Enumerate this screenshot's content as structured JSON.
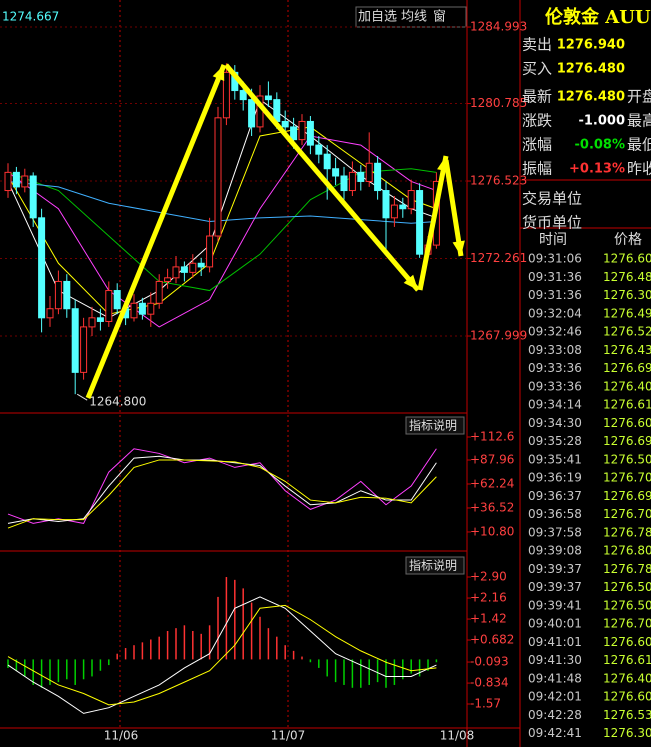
{
  "toolbar": [
    "加自选",
    "均线",
    "窗"
  ],
  "dates": [
    "11/06",
    "11/07",
    "11/08"
  ],
  "chart_data": [
    {
      "type": "candlestick",
      "current": "1274.667",
      "ylim": [
        1263.82,
        1286.48
      ],
      "yticks": [
        1284.993,
        1280.785,
        1276.523,
        1272.261,
        1267.999
      ],
      "grid": true,
      "up_color": "#ff3232",
      "down_color": "#54ffff",
      "candles": [
        [
          1276.0,
          1277.5,
          1275.6,
          1277.0
        ],
        [
          1277.0,
          1277.3,
          1275.8,
          1276.2
        ],
        [
          1276.2,
          1277.2,
          1275.9,
          1276.8
        ],
        [
          1276.8,
          1277.0,
          1274.0,
          1274.5
        ],
        [
          1274.5,
          1275.0,
          1268.2,
          1269.0
        ],
        [
          1269.0,
          1270.2,
          1268.5,
          1269.5
        ],
        [
          1269.5,
          1271.6,
          1269.2,
          1271.0
        ],
        [
          1271.0,
          1271.4,
          1269.0,
          1269.5
        ],
        [
          1269.5,
          1270.0,
          1264.8,
          1266.0
        ],
        [
          1266.0,
          1269.0,
          1265.6,
          1268.5
        ],
        [
          1268.5,
          1269.6,
          1268.0,
          1269.0
        ],
        [
          1269.0,
          1269.5,
          1268.3,
          1268.8
        ],
        [
          1268.8,
          1271.0,
          1268.5,
          1270.5
        ],
        [
          1270.5,
          1270.9,
          1269.2,
          1269.5
        ],
        [
          1269.5,
          1269.9,
          1268.6,
          1269.0
        ],
        [
          1269.0,
          1270.3,
          1268.8,
          1269.8
        ],
        [
          1269.8,
          1270.1,
          1268.9,
          1269.2
        ],
        [
          1269.2,
          1270.4,
          1268.5,
          1269.8
        ],
        [
          1269.8,
          1271.4,
          1269.5,
          1271.0
        ],
        [
          1271.0,
          1271.7,
          1270.6,
          1271.2
        ],
        [
          1271.2,
          1272.4,
          1270.9,
          1271.8
        ],
        [
          1271.8,
          1272.1,
          1271.0,
          1271.5
        ],
        [
          1271.5,
          1272.5,
          1271.2,
          1272.0
        ],
        [
          1272.0,
          1272.3,
          1271.3,
          1271.8
        ],
        [
          1271.8,
          1274.5,
          1271.5,
          1273.5
        ],
        [
          1273.5,
          1280.6,
          1273.2,
          1280.0
        ],
        [
          1280.0,
          1283.0,
          1279.6,
          1282.5
        ],
        [
          1282.5,
          1282.9,
          1281.0,
          1281.5
        ],
        [
          1281.5,
          1282.0,
          1280.4,
          1281.0
        ],
        [
          1281.0,
          1281.6,
          1279.0,
          1279.5
        ],
        [
          1279.5,
          1281.8,
          1279.2,
          1281.2
        ],
        [
          1281.2,
          1282.0,
          1280.6,
          1281.0
        ],
        [
          1281.0,
          1281.4,
          1279.4,
          1279.8
        ],
        [
          1279.8,
          1280.4,
          1279.0,
          1279.5
        ],
        [
          1279.5,
          1280.0,
          1278.3,
          1278.8
        ],
        [
          1278.8,
          1280.2,
          1278.5,
          1279.8
        ],
        [
          1279.8,
          1280.1,
          1278.0,
          1278.5
        ],
        [
          1278.5,
          1279.0,
          1277.5,
          1278.0
        ],
        [
          1278.0,
          1278.5,
          1275.5,
          1277.2
        ],
        [
          1277.2,
          1277.8,
          1276.3,
          1276.8
        ],
        [
          1276.8,
          1277.3,
          1275.5,
          1276.0
        ],
        [
          1276.0,
          1277.6,
          1275.7,
          1277.0
        ],
        [
          1277.0,
          1277.4,
          1276.0,
          1276.5
        ],
        [
          1276.5,
          1279.2,
          1276.2,
          1277.5
        ],
        [
          1277.5,
          1277.9,
          1275.5,
          1276.0
        ],
        [
          1276.0,
          1276.5,
          1272.5,
          1274.5
        ],
        [
          1274.5,
          1275.7,
          1274.0,
          1275.2
        ],
        [
          1275.2,
          1275.6,
          1274.5,
          1275.0
        ],
        [
          1275.0,
          1276.6,
          1274.7,
          1276.0
        ],
        [
          1276.0,
          1276.4,
          1272.3,
          1272.5
        ],
        [
          1272.5,
          1273.5,
          1272.2,
          1273.0
        ],
        [
          1273.0,
          1277.0,
          1272.8,
          1276.5
        ]
      ],
      "lines": [
        {
          "color": "#ffffff",
          "x": [
            0,
            6,
            12,
            18,
            24,
            30,
            36,
            42,
            48,
            51
          ],
          "values": [
            1276.5,
            1270.5,
            1269,
            1270.5,
            1273,
            1281,
            1279,
            1276.8,
            1275,
            1274.5
          ]
        },
        {
          "color": "#ffff00",
          "x": [
            0,
            6,
            12,
            18,
            24,
            30,
            36,
            42,
            48,
            51
          ],
          "values": [
            1276.8,
            1272,
            1269.2,
            1269.8,
            1272,
            1279,
            1279.5,
            1277.5,
            1275.5,
            1275
          ]
        },
        {
          "color": "#ff40ff",
          "x": [
            0,
            6,
            12,
            18,
            24,
            30,
            36,
            42,
            48,
            51
          ],
          "values": [
            1277,
            1275,
            1270.5,
            1268.5,
            1270,
            1275,
            1279,
            1278.5,
            1276.5,
            1276
          ]
        },
        {
          "color": "#00c000",
          "x": [
            0,
            6,
            12,
            18,
            24,
            30,
            36,
            42,
            48,
            51
          ],
          "values": [
            1277,
            1276,
            1273.5,
            1271,
            1270.5,
            1272.5,
            1275.5,
            1277,
            1277.2,
            1277
          ]
        },
        {
          "color": "#40b0ff",
          "x": [
            0,
            6,
            12,
            18,
            24,
            30,
            36,
            42,
            48,
            51
          ],
          "values": [
            1276.5,
            1276.2,
            1275.3,
            1274.8,
            1274.3,
            1274.5,
            1274.6,
            1274.4,
            1274.2,
            1274.3
          ]
        }
      ],
      "annotation": {
        "value": 1264.8,
        "label": "1264.800"
      }
    },
    {
      "type": "line",
      "title": "指标说明",
      "ylim": [
        -6.4,
        136.2
      ],
      "yticks": [
        {
          "value": 112.6,
          "label": "+112.6"
        },
        {
          "value": 87.96,
          "label": "+87.96"
        },
        {
          "value": 62.24,
          "label": "+62.24"
        },
        {
          "value": 36.52,
          "label": "+36.52"
        },
        {
          "value": 10.8,
          "label": "+10.80"
        }
      ],
      "lines": [
        {
          "color": "#ff40ff",
          "x": [
            0,
            3,
            6,
            9,
            12,
            15,
            18,
            21,
            24,
            27,
            30,
            33,
            36,
            39,
            42,
            45,
            48,
            51
          ],
          "values": [
            30,
            20,
            25,
            20,
            75,
            100,
            95,
            85,
            90,
            80,
            85,
            55,
            35,
            45,
            65,
            40,
            60,
            100
          ]
        },
        {
          "color": "#ffffff",
          "x": [
            0,
            3,
            6,
            9,
            12,
            15,
            18,
            21,
            24,
            27,
            30,
            33,
            36,
            39,
            42,
            45,
            48,
            51
          ],
          "values": [
            20,
            25,
            22,
            25,
            60,
            90,
            92,
            88,
            88,
            85,
            82,
            60,
            40,
            42,
            55,
            45,
            45,
            85
          ]
        },
        {
          "color": "#ffff00",
          "x": [
            0,
            3,
            6,
            9,
            12,
            15,
            18,
            21,
            24,
            27,
            30,
            33,
            36,
            39,
            42,
            45,
            48,
            51
          ],
          "values": [
            15,
            25,
            24,
            24,
            50,
            80,
            88,
            88,
            87,
            86,
            80,
            65,
            45,
            42,
            48,
            47,
            42,
            70
          ]
        }
      ]
    },
    {
      "type": "macd",
      "title": "指标说明",
      "ylim": [
        -2.415,
        3.675
      ],
      "yticks": [
        {
          "value": 2.9,
          "label": "+2.90"
        },
        {
          "value": 2.16,
          "label": "+2.16"
        },
        {
          "value": 1.42,
          "label": "+1.42"
        },
        {
          "value": 0.682,
          "label": "+0.682"
        },
        -0.093,
        -0.834,
        -1.57
      ],
      "up_color": "#ff3232",
      "down_color": "#00d000",
      "bars": [
        -0.3,
        -0.4,
        -0.6,
        -0.9,
        -1.0,
        -0.9,
        -0.8,
        -0.7,
        -0.9,
        -0.7,
        -0.6,
        -0.4,
        -0.2,
        0.2,
        0.4,
        0.5,
        0.6,
        0.7,
        0.8,
        1.0,
        1.1,
        1.2,
        1.0,
        0.9,
        1.2,
        2.2,
        2.9,
        2.8,
        2.5,
        2.0,
        1.5,
        1.1,
        0.8,
        0.5,
        0.3,
        0.1,
        -0.1,
        -0.3,
        -0.6,
        -0.8,
        -0.9,
        -1.0,
        -1.0,
        -0.9,
        -0.8,
        -1.0,
        -0.9,
        -0.7,
        -0.5,
        -0.6,
        -0.4,
        -0.1
      ],
      "lines": [
        {
          "color": "#ffffff",
          "x": [
            0,
            3,
            6,
            9,
            12,
            15,
            18,
            21,
            24,
            27,
            30,
            33,
            36,
            39,
            42,
            45,
            48,
            51
          ],
          "values": [
            -0.2,
            -0.8,
            -1.3,
            -1.9,
            -1.7,
            -1.3,
            -0.9,
            -0.3,
            0.2,
            1.8,
            2.2,
            1.8,
            1.0,
            0.2,
            -0.2,
            -0.6,
            -0.6,
            -0.2
          ]
        },
        {
          "color": "#ffff00",
          "x": [
            0,
            3,
            6,
            9,
            12,
            15,
            18,
            21,
            24,
            27,
            30,
            33,
            36,
            39,
            42,
            45,
            48,
            51
          ],
          "values": [
            0.1,
            -0.4,
            -0.9,
            -1.2,
            -1.6,
            -1.5,
            -1.2,
            -0.8,
            -0.4,
            0.5,
            1.8,
            1.9,
            1.4,
            0.8,
            0.3,
            -0.1,
            -0.4,
            -0.3
          ]
        }
      ]
    }
  ],
  "quote": {
    "title": "伦敦金 AUU",
    "rows": [
      {
        "label": "卖出",
        "value": "1276.940",
        "color": "#ffff00"
      },
      {
        "label": "买入",
        "value": "1276.480",
        "color": "#ffff00"
      },
      {
        "label": "最新",
        "value": "1276.480",
        "color": "#ffff00",
        "extra": "开盘"
      },
      {
        "label": "涨跌",
        "value": "-1.000",
        "color": "#ffffff",
        "extra": "最高"
      },
      {
        "label": "涨幅",
        "value": "-0.08%",
        "color": "#00e000",
        "extra": "最低"
      },
      {
        "label": "振幅",
        "value": "+0.13%",
        "color": "#ff3232",
        "extra": "昨收"
      },
      {
        "label": "交易单位"
      },
      {
        "label": "货币单位"
      }
    ],
    "header": [
      "时间",
      "价格"
    ],
    "trades": [
      [
        "09:31:06",
        "1276.600"
      ],
      [
        "09:31:36",
        "1276.480"
      ],
      [
        "09:31:36",
        "1276.300"
      ],
      [
        "09:32:04",
        "1276.490"
      ],
      [
        "09:32:46",
        "1276.520"
      ],
      [
        "09:33:08",
        "1276.430"
      ],
      [
        "09:33:36",
        "1276.690"
      ],
      [
        "09:33:36",
        "1276.400"
      ],
      [
        "09:34:14",
        "1276.610"
      ],
      [
        "09:34:30",
        "1276.600"
      ],
      [
        "09:35:28",
        "1276.690"
      ],
      [
        "09:35:41",
        "1276.500"
      ],
      [
        "09:36:19",
        "1276.700"
      ],
      [
        "09:36:37",
        "1276.690"
      ],
      [
        "09:36:58",
        "1276.700"
      ],
      [
        "09:37:58",
        "1276.780"
      ],
      [
        "09:39:08",
        "1276.800"
      ],
      [
        "09:39:37",
        "1276.780"
      ],
      [
        "09:39:37",
        "1276.500"
      ],
      [
        "09:39:41",
        "1276.500"
      ],
      [
        "09:40:01",
        "1276.700"
      ],
      [
        "09:41:01",
        "1276.600"
      ],
      [
        "09:41:30",
        "1276.610"
      ],
      [
        "09:41:48",
        "1276.400"
      ],
      [
        "09:42:01",
        "1276.600"
      ],
      [
        "09:42:28",
        "1276.530"
      ],
      [
        "09:42:41",
        "1276.300"
      ]
    ]
  }
}
